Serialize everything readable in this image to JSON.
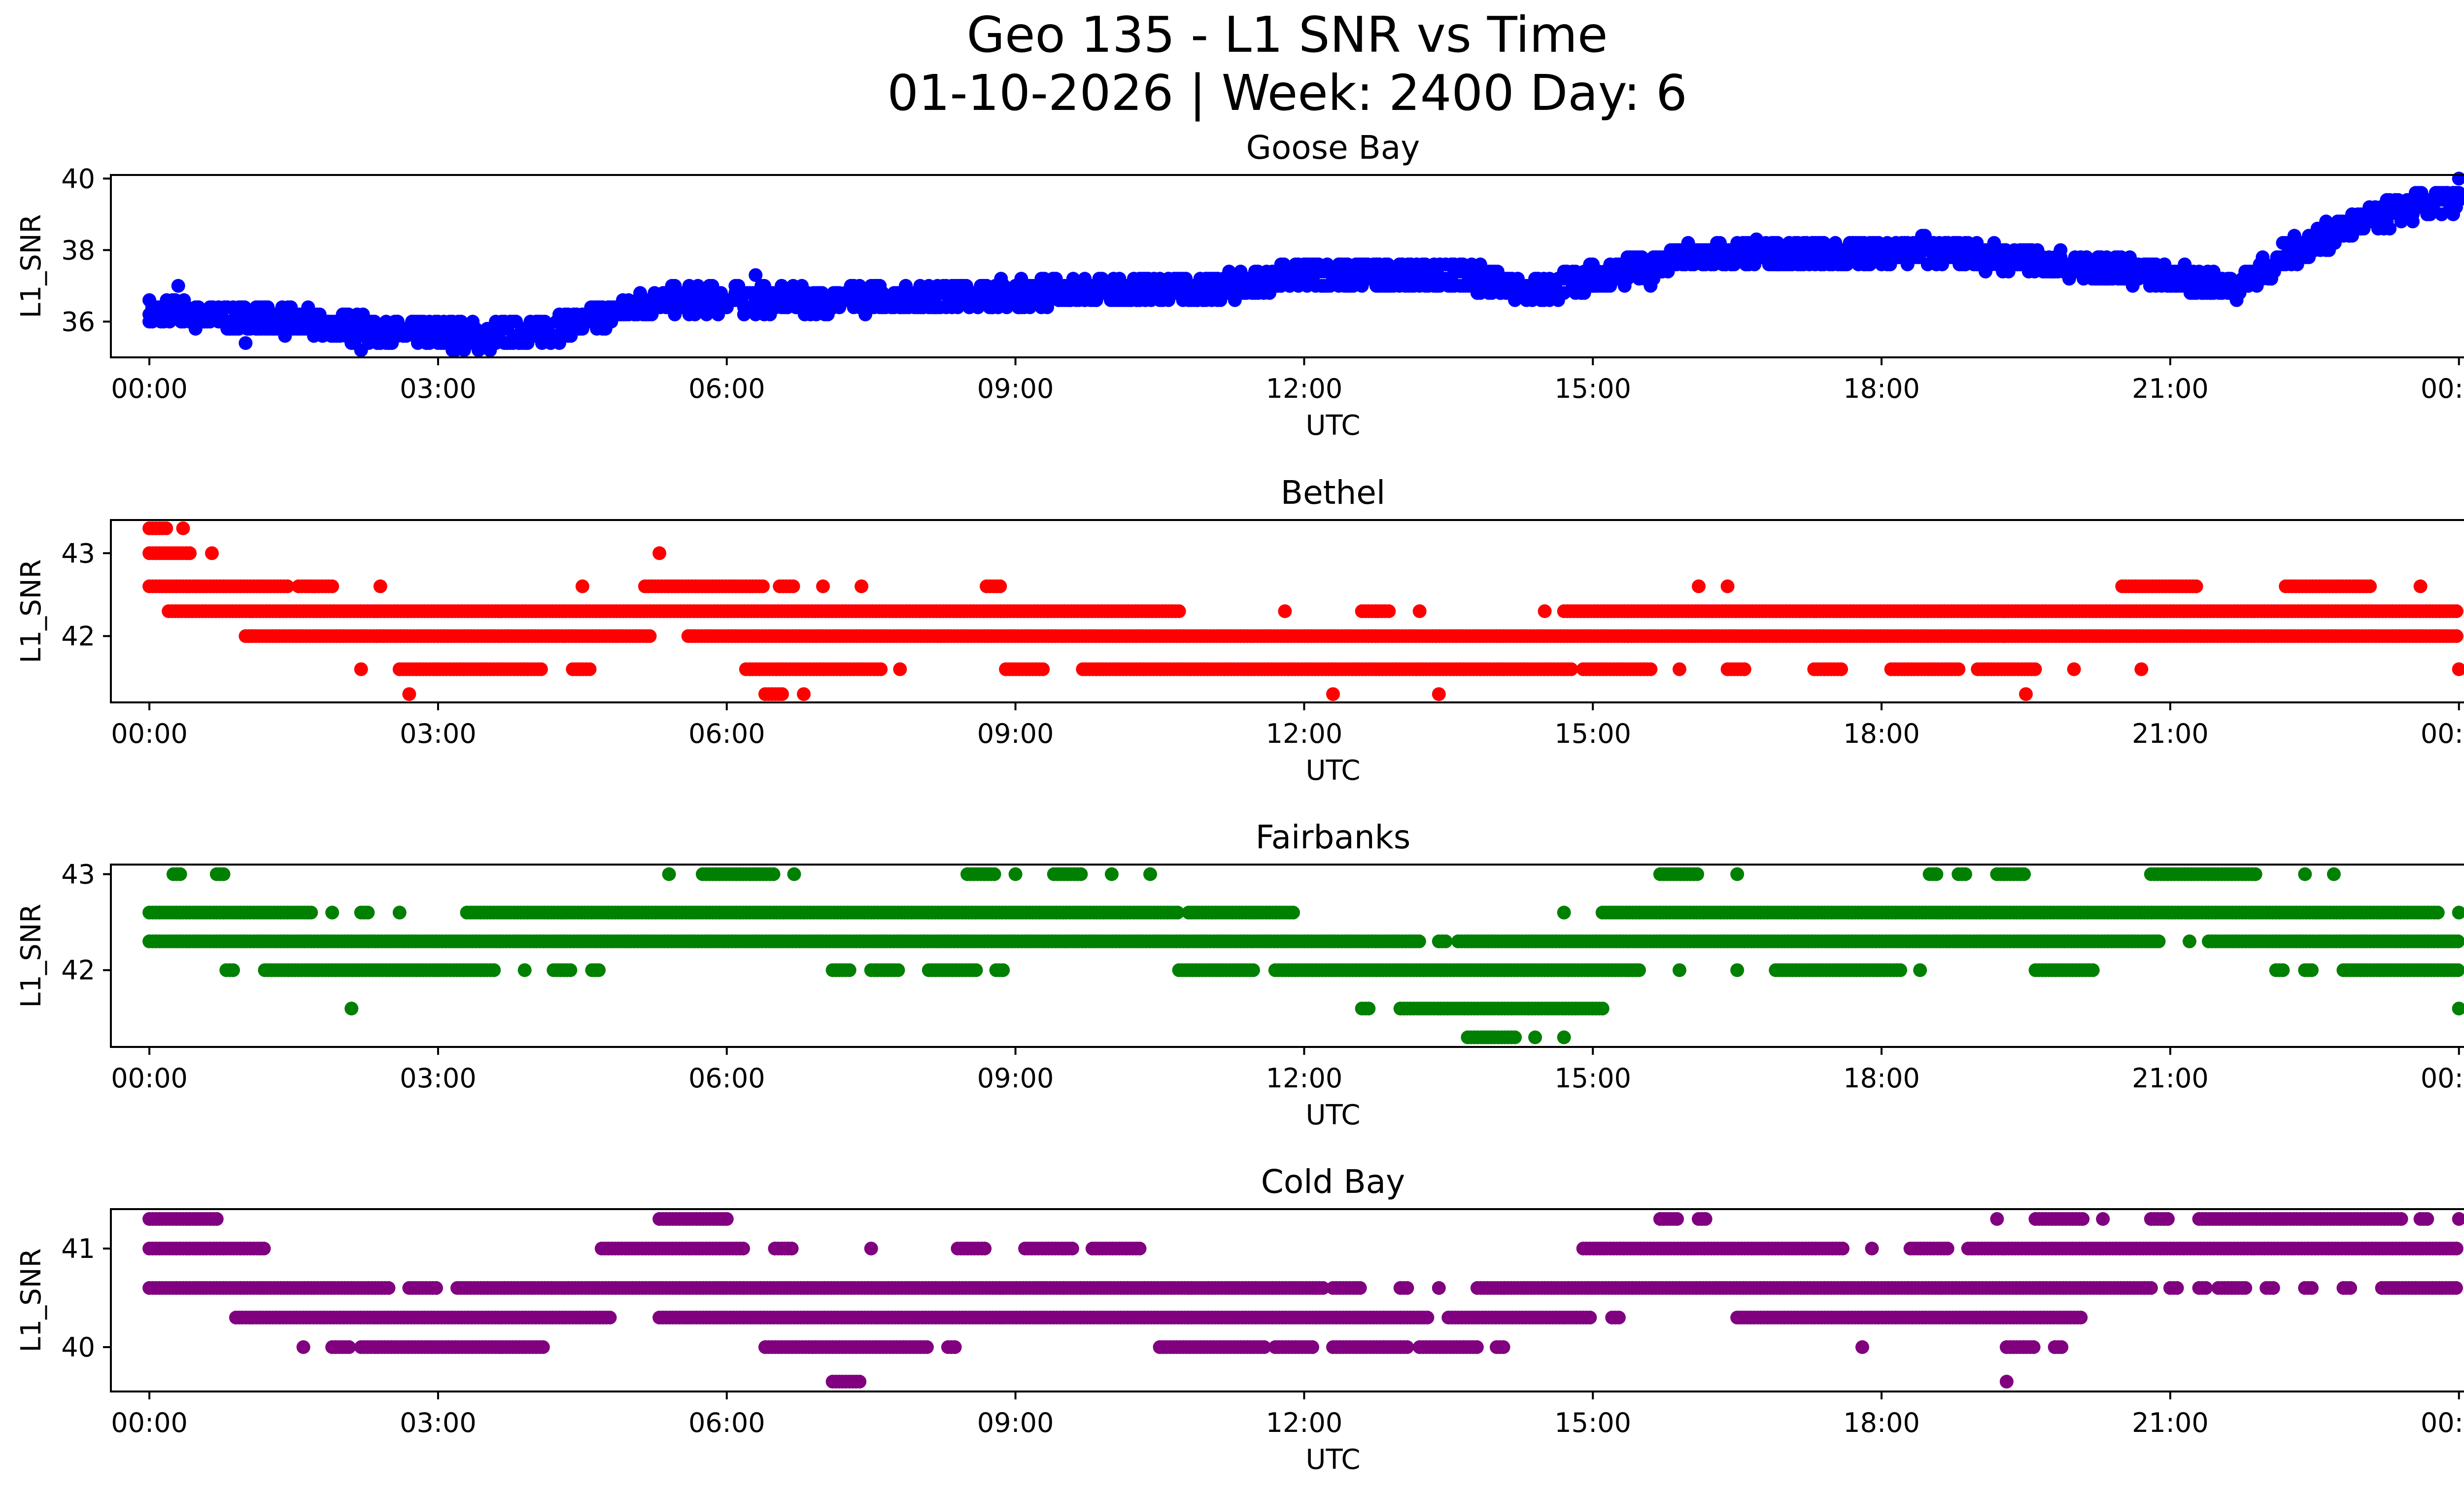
{
  "figure": {
    "title_line1": "Geo 135 - L1 SNR vs Time",
    "title_line2": "01-10-2026 | Week: 2400 Day: 6"
  },
  "chart_data": [
    {
      "type": "scatter",
      "title": "Goose Bay",
      "xlabel": "UTC",
      "ylabel": "L1_SNR",
      "color": "#0000ff",
      "xlim": [
        -0.4,
        25.0
      ],
      "ylim": [
        35.0,
        40.1
      ],
      "x_ticks": [
        0,
        3,
        6,
        9,
        12,
        15,
        18,
        21,
        24
      ],
      "x_tick_labels": [
        "00:00",
        "03:00",
        "06:00",
        "09:00",
        "12:00",
        "15:00",
        "18:00",
        "21:00",
        "00:00"
      ],
      "y_ticks": [
        36,
        38,
        40
      ],
      "y_tick_labels": [
        "36",
        "38",
        "40"
      ],
      "trend": [
        [
          0,
          36.3
        ],
        [
          1.5,
          36.0
        ],
        [
          2.5,
          35.7
        ],
        [
          3.5,
          35.6
        ],
        [
          4.2,
          35.8
        ],
        [
          5.3,
          36.6
        ],
        [
          7.0,
          36.6
        ],
        [
          9.0,
          36.8
        ],
        [
          11.0,
          36.9
        ],
        [
          12.0,
          37.3
        ],
        [
          13.5,
          37.3
        ],
        [
          14.5,
          36.9
        ],
        [
          15.0,
          37.2
        ],
        [
          16.0,
          37.8
        ],
        [
          17.5,
          37.9
        ],
        [
          18.5,
          38.0
        ],
        [
          19.5,
          37.7
        ],
        [
          20.5,
          37.5
        ],
        [
          21.0,
          37.2
        ],
        [
          21.7,
          37.0
        ],
        [
          22.3,
          38.0
        ],
        [
          23.0,
          38.8
        ],
        [
          23.5,
          39.2
        ],
        [
          24.0,
          39.4
        ]
      ],
      "spread": 0.7,
      "extra_points": [
        [
          24.0,
          40.0
        ],
        [
          1.0,
          35.4
        ],
        [
          2.2,
          35.2
        ],
        [
          0.3,
          37.0
        ],
        [
          6.3,
          37.3
        ],
        [
          15.6,
          37.0
        ],
        [
          16.7,
          38.3
        ]
      ]
    },
    {
      "type": "scatter",
      "title": "Bethel",
      "xlabel": "UTC",
      "ylabel": "L1_SNR",
      "color": "#ff0000",
      "xlim": [
        -0.4,
        25.0
      ],
      "ylim": [
        41.2,
        43.4
      ],
      "x_ticks": [
        0,
        3,
        6,
        9,
        12,
        15,
        18,
        21,
        24
      ],
      "x_tick_labels": [
        "00:00",
        "03:00",
        "06:00",
        "09:00",
        "12:00",
        "15:00",
        "18:00",
        "21:00",
        "00:00"
      ],
      "y_ticks": [
        42,
        43
      ],
      "y_tick_labels": [
        "42",
        "43"
      ],
      "levels": [
        {
          "y": 43.3,
          "segments": [
            [
              0.0,
              0.2
            ],
            [
              0.35,
              0.35
            ]
          ]
        },
        {
          "y": 43.0,
          "segments": [
            [
              0.0,
              0.45
            ],
            [
              0.65,
              0.65
            ],
            [
              5.3,
              5.3
            ]
          ]
        },
        {
          "y": 42.6,
          "segments": [
            [
              0.0,
              1.45
            ],
            [
              1.55,
              1.9
            ],
            [
              2.4,
              2.4
            ],
            [
              4.5,
              4.5
            ],
            [
              5.15,
              6.4
            ],
            [
              6.55,
              6.7
            ],
            [
              7.0,
              7.0
            ],
            [
              7.4,
              7.4
            ],
            [
              8.7,
              8.85
            ],
            [
              16.1,
              16.1
            ],
            [
              16.4,
              16.4
            ],
            [
              20.5,
              21.3
            ],
            [
              22.2,
              23.1
            ],
            [
              23.6,
              23.6
            ]
          ]
        },
        {
          "y": 42.3,
          "segments": [
            [
              0.2,
              10.7
            ],
            [
              11.8,
              11.8
            ],
            [
              12.6,
              12.9
            ],
            [
              13.2,
              13.2
            ],
            [
              14.5,
              14.5
            ],
            [
              14.7,
              24.0
            ]
          ]
        },
        {
          "y": 42.0,
          "segments": [
            [
              1.0,
              5.2
            ],
            [
              5.6,
              24.0
            ]
          ]
        },
        {
          "y": 41.6,
          "segments": [
            [
              2.2,
              2.2
            ],
            [
              2.6,
              4.1
            ],
            [
              4.4,
              4.6
            ],
            [
              6.2,
              7.6
            ],
            [
              7.8,
              7.8
            ],
            [
              8.9,
              9.3
            ],
            [
              9.7,
              14.8
            ],
            [
              14.9,
              15.6
            ],
            [
              15.9,
              15.9
            ],
            [
              16.4,
              16.6
            ],
            [
              17.3,
              17.6
            ],
            [
              18.1,
              18.8
            ],
            [
              19.0,
              19.6
            ],
            [
              20.0,
              20.0
            ],
            [
              20.7,
              20.7
            ],
            [
              24.0,
              24.0
            ]
          ]
        },
        {
          "y": 41.3,
          "segments": [
            [
              2.7,
              2.7
            ],
            [
              6.4,
              6.6
            ],
            [
              6.8,
              6.8
            ],
            [
              12.3,
              12.3
            ],
            [
              13.4,
              13.4
            ],
            [
              19.5,
              19.5
            ]
          ]
        }
      ]
    },
    {
      "type": "scatter",
      "title": "Fairbanks",
      "xlabel": "UTC",
      "ylabel": "L1_SNR",
      "color": "#008000",
      "xlim": [
        -0.4,
        25.0
      ],
      "ylim": [
        41.2,
        43.1
      ],
      "x_ticks": [
        0,
        3,
        6,
        9,
        12,
        15,
        18,
        21,
        24
      ],
      "x_tick_labels": [
        "00:00",
        "03:00",
        "06:00",
        "09:00",
        "12:00",
        "15:00",
        "18:00",
        "21:00",
        "00:00"
      ],
      "y_ticks": [
        42,
        43
      ],
      "y_tick_labels": [
        "42",
        "43"
      ],
      "levels": [
        {
          "y": 43.0,
          "segments": [
            [
              0.25,
              0.35
            ],
            [
              0.7,
              0.8
            ],
            [
              5.4,
              5.4
            ],
            [
              5.75,
              6.5
            ],
            [
              6.7,
              6.7
            ],
            [
              8.5,
              8.8
            ],
            [
              9.0,
              9.0
            ],
            [
              9.4,
              9.7
            ],
            [
              10.0,
              10.0
            ],
            [
              10.4,
              10.4
            ],
            [
              15.7,
              16.1
            ],
            [
              16.5,
              16.5
            ],
            [
              18.5,
              18.6
            ],
            [
              18.8,
              18.9
            ],
            [
              19.2,
              19.5
            ],
            [
              20.8,
              21.9
            ],
            [
              22.4,
              22.4
            ],
            [
              22.7,
              22.7
            ]
          ]
        },
        {
          "y": 42.6,
          "segments": [
            [
              0.0,
              1.7
            ],
            [
              1.9,
              1.9
            ],
            [
              2.2,
              2.3
            ],
            [
              2.6,
              2.6
            ],
            [
              3.3,
              10.7
            ],
            [
              10.8,
              11.9
            ],
            [
              14.7,
              14.7
            ],
            [
              15.1,
              23.8
            ],
            [
              24.0,
              24.0
            ]
          ]
        },
        {
          "y": 42.3,
          "segments": [
            [
              0.0,
              13.2
            ],
            [
              13.4,
              13.5
            ],
            [
              13.6,
              20.9
            ],
            [
              21.2,
              21.2
            ],
            [
              21.4,
              24.0
            ]
          ]
        },
        {
          "y": 42.0,
          "segments": [
            [
              0.8,
              0.9
            ],
            [
              1.2,
              3.6
            ],
            [
              3.9,
              3.9
            ],
            [
              4.2,
              4.4
            ],
            [
              4.6,
              4.7
            ],
            [
              7.1,
              7.3
            ],
            [
              7.5,
              7.8
            ],
            [
              8.1,
              8.6
            ],
            [
              8.8,
              8.9
            ],
            [
              10.7,
              11.5
            ],
            [
              11.7,
              15.5
            ],
            [
              15.9,
              15.9
            ],
            [
              16.5,
              16.5
            ],
            [
              16.9,
              18.2
            ],
            [
              18.4,
              18.4
            ],
            [
              19.6,
              20.2
            ],
            [
              22.1,
              22.2
            ],
            [
              22.4,
              22.5
            ],
            [
              22.8,
              24.0
            ]
          ]
        },
        {
          "y": 41.6,
          "segments": [
            [
              2.1,
              2.1
            ],
            [
              12.6,
              12.7
            ],
            [
              13.0,
              15.1
            ],
            [
              24.0,
              24.0
            ]
          ]
        },
        {
          "y": 41.3,
          "segments": [
            [
              13.7,
              14.2
            ],
            [
              14.4,
              14.4
            ],
            [
              14.7,
              14.7
            ]
          ]
        }
      ]
    },
    {
      "type": "scatter",
      "title": "Cold Bay",
      "xlabel": "UTC",
      "ylabel": "L1_SNR",
      "color": "#800080",
      "xlim": [
        -0.4,
        25.0
      ],
      "ylim": [
        39.55,
        41.4
      ],
      "x_ticks": [
        0,
        3,
        6,
        9,
        12,
        15,
        18,
        21,
        24
      ],
      "x_tick_labels": [
        "00:00",
        "03:00",
        "06:00",
        "09:00",
        "12:00",
        "15:00",
        "18:00",
        "21:00",
        "00:00"
      ],
      "y_ticks": [
        40,
        41
      ],
      "y_tick_labels": [
        "40",
        "41"
      ],
      "levels": [
        {
          "y": 41.3,
          "segments": [
            [
              0.0,
              0.7
            ],
            [
              5.3,
              6.0
            ],
            [
              15.7,
              15.9
            ],
            [
              16.1,
              16.2
            ],
            [
              19.2,
              19.2
            ],
            [
              19.6,
              20.1
            ],
            [
              20.3,
              20.3
            ],
            [
              20.8,
              21.0
            ],
            [
              21.3,
              23.4
            ],
            [
              23.6,
              23.7
            ],
            [
              24.0,
              24.0
            ]
          ]
        },
        {
          "y": 41.0,
          "segments": [
            [
              0.0,
              1.2
            ],
            [
              4.7,
              6.2
            ],
            [
              6.5,
              6.7
            ],
            [
              7.5,
              7.5
            ],
            [
              8.4,
              8.7
            ],
            [
              9.1,
              9.6
            ],
            [
              9.8,
              10.3
            ],
            [
              14.9,
              17.6
            ],
            [
              17.9,
              17.9
            ],
            [
              18.3,
              18.7
            ],
            [
              18.9,
              24.0
            ]
          ]
        },
        {
          "y": 40.6,
          "segments": [
            [
              0.0,
              2.5
            ],
            [
              2.7,
              3.0
            ],
            [
              3.2,
              12.2
            ],
            [
              12.3,
              12.6
            ],
            [
              13.0,
              13.1
            ],
            [
              13.4,
              13.4
            ],
            [
              13.8,
              20.8
            ],
            [
              21.0,
              21.1
            ],
            [
              21.3,
              21.4
            ],
            [
              21.5,
              21.8
            ],
            [
              22.0,
              22.1
            ],
            [
              22.4,
              22.5
            ],
            [
              22.8,
              22.9
            ],
            [
              23.2,
              24.0
            ]
          ]
        },
        {
          "y": 40.3,
          "segments": [
            [
              0.9,
              4.8
            ],
            [
              5.3,
              13.3
            ],
            [
              13.5,
              15.0
            ],
            [
              15.2,
              15.3
            ],
            [
              16.5,
              20.1
            ]
          ]
        },
        {
          "y": 40.0,
          "segments": [
            [
              1.6,
              1.6
            ],
            [
              1.9,
              2.1
            ],
            [
              2.2,
              4.1
            ],
            [
              6.4,
              8.1
            ],
            [
              8.3,
              8.4
            ],
            [
              10.5,
              11.6
            ],
            [
              11.7,
              12.1
            ],
            [
              12.3,
              13.1
            ],
            [
              13.2,
              13.8
            ],
            [
              14.0,
              14.1
            ],
            [
              17.8,
              17.8
            ],
            [
              19.3,
              19.6
            ],
            [
              19.8,
              19.9
            ]
          ]
        },
        {
          "y": 39.65,
          "segments": [
            [
              7.1,
              7.4
            ],
            [
              19.3,
              19.3
            ]
          ]
        }
      ]
    }
  ]
}
